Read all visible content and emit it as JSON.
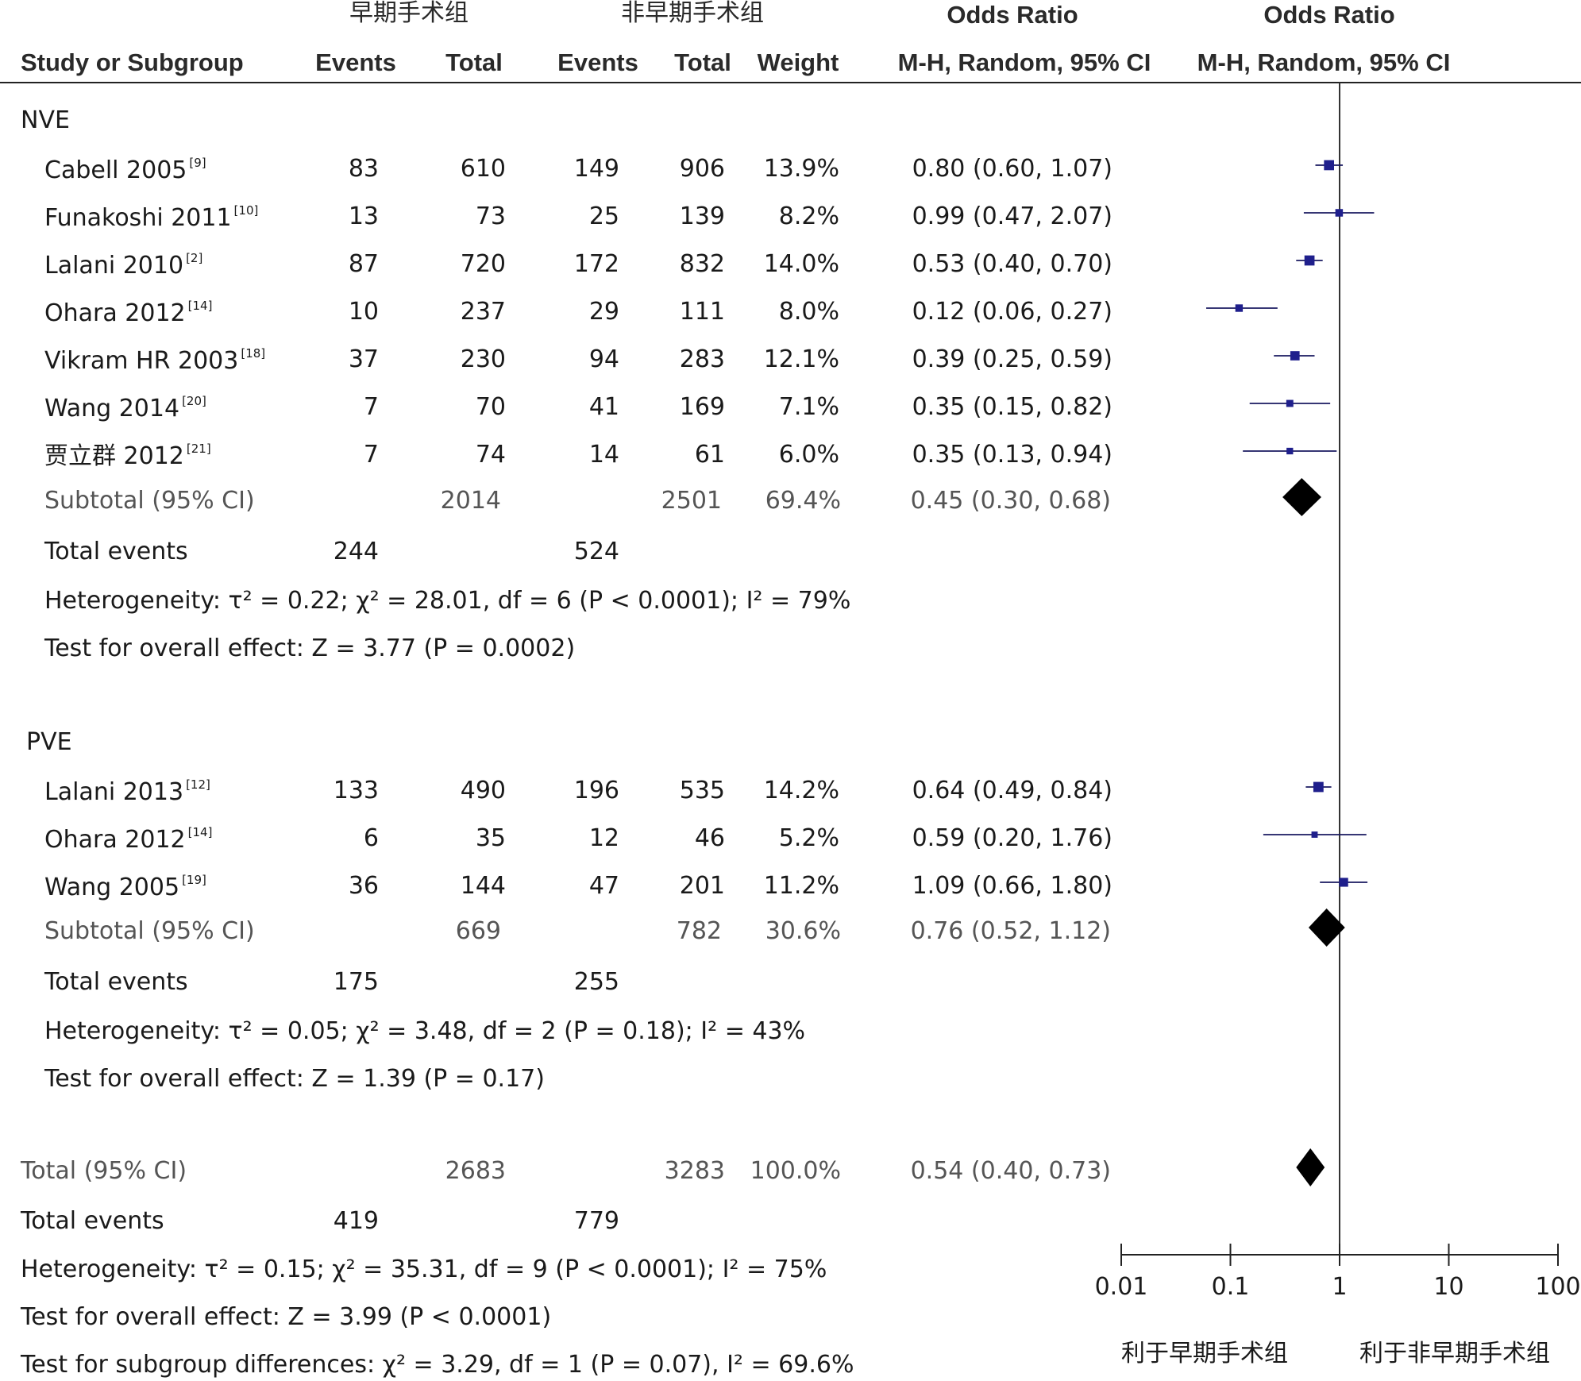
{
  "header": {
    "group1": "早期手术组",
    "group2": "非早期手术组",
    "or_title_1": "Odds Ratio",
    "or_title_2": "Odds Ratio",
    "col_study": "Study or Subgroup",
    "col_events1": "Events",
    "col_total1": "Total",
    "col_events2": "Events",
    "col_total2": "Total",
    "col_weight": "Weight",
    "col_ci": "M-H, Random, 95% CI",
    "col_plot": "M-H, Random, 95% CI"
  },
  "subgroups": [
    {
      "name": "NVE",
      "studies": [
        {
          "study": "Cabell 2005",
          "ref": "[9]",
          "e1": "83",
          "t1": "610",
          "e2": "149",
          "t2": "906",
          "weight": "13.9%",
          "ci_text": "0.80 (0.60, 1.07)",
          "or": 0.8,
          "lo": 0.6,
          "hi": 1.07,
          "w": 13.9
        },
        {
          "study": "Funakoshi 2011",
          "ref": "[10]",
          "e1": "13",
          "t1": "73",
          "e2": "25",
          "t2": "139",
          "weight": "8.2%",
          "ci_text": "0.99 (0.47, 2.07)",
          "or": 0.99,
          "lo": 0.47,
          "hi": 2.07,
          "w": 8.2
        },
        {
          "study": "Lalani 2010",
          "ref": "[2]",
          "e1": "87",
          "t1": "720",
          "e2": "172",
          "t2": "832",
          "weight": "14.0%",
          "ci_text": "0.53 (0.40, 0.70)",
          "or": 0.53,
          "lo": 0.4,
          "hi": 0.7,
          "w": 14.0
        },
        {
          "study": "Ohara 2012",
          "ref": "[14]",
          "e1": "10",
          "t1": "237",
          "e2": "29",
          "t2": "111",
          "weight": "8.0%",
          "ci_text": "0.12 (0.06, 0.27)",
          "or": 0.12,
          "lo": 0.06,
          "hi": 0.27,
          "w": 8.0
        },
        {
          "study": "Vikram HR 2003",
          "ref": "[18]",
          "e1": "37",
          "t1": "230",
          "e2": "94",
          "t2": "283",
          "weight": "12.1%",
          "ci_text": "0.39 (0.25, 0.59)",
          "or": 0.39,
          "lo": 0.25,
          "hi": 0.59,
          "w": 12.1
        },
        {
          "study": "Wang 2014",
          "ref": "[20]",
          "e1": "7",
          "t1": "70",
          "e2": "41",
          "t2": "169",
          "weight": "7.1%",
          "ci_text": "0.35 (0.15, 0.82)",
          "or": 0.35,
          "lo": 0.15,
          "hi": 0.82,
          "w": 7.1
        },
        {
          "study": "贾立群 2012",
          "ref": "[21]",
          "e1": "7",
          "t1": "74",
          "e2": "14",
          "t2": "61",
          "weight": "6.0%",
          "ci_text": "0.35 (0.13, 0.94)",
          "or": 0.35,
          "lo": 0.13,
          "hi": 0.94,
          "w": 6.0
        }
      ],
      "subtotal": {
        "label": "Subtotal (95% CI)",
        "t1": "2014",
        "t2": "2501",
        "weight": "69.4%",
        "ci_text": "0.45 (0.30, 0.68)",
        "or": 0.45,
        "lo": 0.3,
        "hi": 0.68
      },
      "total_events": {
        "label": "Total events",
        "e1": "244",
        "e2": "524"
      },
      "heterogeneity": "Heterogeneity: τ² = 0.22; χ² = 28.01, df = 6 (P < 0.0001); I² = 79%",
      "overall_effect": "Test for overall effect: Z = 3.77 (P = 0.0002)"
    },
    {
      "name": "PVE",
      "studies": [
        {
          "study": "Lalani 2013",
          "ref": "[12]",
          "e1": "133",
          "t1": "490",
          "e2": "196",
          "t2": "535",
          "weight": "14.2%",
          "ci_text": "0.64 (0.49, 0.84)",
          "or": 0.64,
          "lo": 0.49,
          "hi": 0.84,
          "w": 14.2
        },
        {
          "study": "Ohara 2012",
          "ref": "[14]",
          "e1": "6",
          "t1": "35",
          "e2": "12",
          "t2": "46",
          "weight": "5.2%",
          "ci_text": "0.59 (0.20, 1.76)",
          "or": 0.59,
          "lo": 0.2,
          "hi": 1.76,
          "w": 5.2
        },
        {
          "study": "Wang 2005",
          "ref": "[19]",
          "e1": "36",
          "t1": "144",
          "e2": "47",
          "t2": "201",
          "weight": "11.2%",
          "ci_text": "1.09 (0.66, 1.80)",
          "or": 1.09,
          "lo": 0.66,
          "hi": 1.8,
          "w": 11.2
        }
      ],
      "subtotal": {
        "label": "Subtotal (95% CI)",
        "t1": "669",
        "t2": "782",
        "weight": "30.6%",
        "ci_text": "0.76 (0.52, 1.12)",
        "or": 0.76,
        "lo": 0.52,
        "hi": 1.12
      },
      "total_events": {
        "label": "Total events",
        "e1": "175",
        "e2": "255"
      },
      "heterogeneity": "Heterogeneity: τ² = 0.05; χ² = 3.48, df = 2 (P = 0.18); I² = 43%",
      "overall_effect": "Test for overall effect: Z = 1.39 (P = 0.17)"
    }
  ],
  "total": {
    "label": "Total (95% CI)",
    "t1": "2683",
    "t2": "3283",
    "weight": "100.0%",
    "ci_text": "0.54 (0.40, 0.73)",
    "or": 0.54,
    "lo": 0.4,
    "hi": 0.73
  },
  "total_events": {
    "label": "Total events",
    "e1": "419",
    "e2": "779"
  },
  "heterogeneity": "Heterogeneity: τ² = 0.15; χ² = 35.31, df = 9 (P < 0.0001); I² = 75%",
  "overall_effect": "Test for overall effect: Z = 3.99 (P < 0.0001)",
  "subgroup_diff": "Test for subgroup differences: χ² = 3.29, df = 1 (P = 0.07), I² = 69.6%",
  "axis": {
    "ticks": [
      "0.01",
      "0.1",
      "1",
      "10",
      "100"
    ],
    "favours_left": "利于早期手术组",
    "favours_right": "利于非早期手术组"
  },
  "chart_data": {
    "type": "forest",
    "xscale": "log",
    "xlim": [
      0.01,
      100
    ],
    "reference_line": 1,
    "colors": {
      "study_marker": "#1f1f8c",
      "summary_diamond": "#000000"
    },
    "series": [
      {
        "name": "NVE",
        "points": [
          {
            "label": "Cabell 2005",
            "or": 0.8,
            "lo": 0.6,
            "hi": 1.07,
            "weight": 13.9
          },
          {
            "label": "Funakoshi 2011",
            "or": 0.99,
            "lo": 0.47,
            "hi": 2.07,
            "weight": 8.2
          },
          {
            "label": "Lalani 2010",
            "or": 0.53,
            "lo": 0.4,
            "hi": 0.7,
            "weight": 14.0
          },
          {
            "label": "Ohara 2012",
            "or": 0.12,
            "lo": 0.06,
            "hi": 0.27,
            "weight": 8.0
          },
          {
            "label": "Vikram HR 2003",
            "or": 0.39,
            "lo": 0.25,
            "hi": 0.59,
            "weight": 12.1
          },
          {
            "label": "Wang 2014",
            "or": 0.35,
            "lo": 0.15,
            "hi": 0.82,
            "weight": 7.1
          },
          {
            "label": "贾立群 2012",
            "or": 0.35,
            "lo": 0.13,
            "hi": 0.94,
            "weight": 6.0
          }
        ],
        "subtotal": {
          "or": 0.45,
          "lo": 0.3,
          "hi": 0.68
        }
      },
      {
        "name": "PVE",
        "points": [
          {
            "label": "Lalani 2013",
            "or": 0.64,
            "lo": 0.49,
            "hi": 0.84,
            "weight": 14.2
          },
          {
            "label": "Ohara 2012",
            "or": 0.59,
            "lo": 0.2,
            "hi": 1.76,
            "weight": 5.2
          },
          {
            "label": "Wang 2005",
            "or": 1.09,
            "lo": 0.66,
            "hi": 1.8,
            "weight": 11.2
          }
        ],
        "subtotal": {
          "or": 0.76,
          "lo": 0.52,
          "hi": 1.12
        }
      }
    ],
    "overall": {
      "or": 0.54,
      "lo": 0.4,
      "hi": 0.73
    }
  }
}
